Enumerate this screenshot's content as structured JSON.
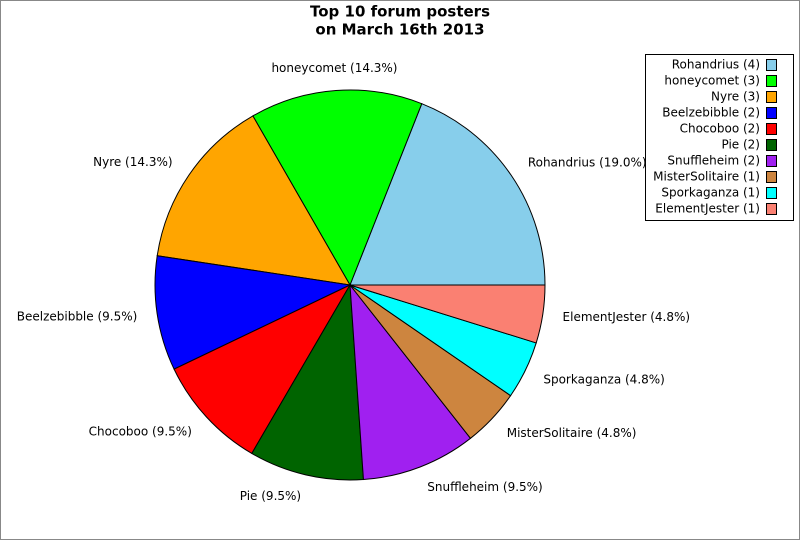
{
  "chart_data": {
    "type": "pie",
    "title": "Top 10 forum posters",
    "subtitle": "on March 16th 2013",
    "categories": [
      "Rohandrius (4)",
      "honeycomet (3)",
      "Nyre (3)",
      "Beelzebibble (2)",
      "Chocoboo (2)",
      "Pie (2)",
      "Snuffleheim (2)",
      "MisterSolitaire (1)",
      "Sporkaganza (1)",
      "ElementJester (1)"
    ],
    "values": [
      19.0,
      14.3,
      14.3,
      9.5,
      9.5,
      9.5,
      9.5,
      4.8,
      4.8,
      4.8
    ],
    "value_labels": [
      "Rohandrius (19.0%)",
      "honeycomet (14.3%)",
      "Nyre (14.3%)",
      "Beelzebibble (9.5%)",
      "Chocoboo (9.5%)",
      "Pie (9.5%)",
      "Snuffleheim (9.5%)",
      "MisterSolitaire (4.8%)",
      "Sporkaganza (4.8%)",
      "ElementJester (4.8%)"
    ],
    "colors": [
      "#87ceeb",
      "#00ff00",
      "#ffa500",
      "#0000ff",
      "#ff0000",
      "#006400",
      "#a020f0",
      "#cd853f",
      "#00ffff",
      "#fa8072"
    ],
    "legend": "top-right"
  }
}
